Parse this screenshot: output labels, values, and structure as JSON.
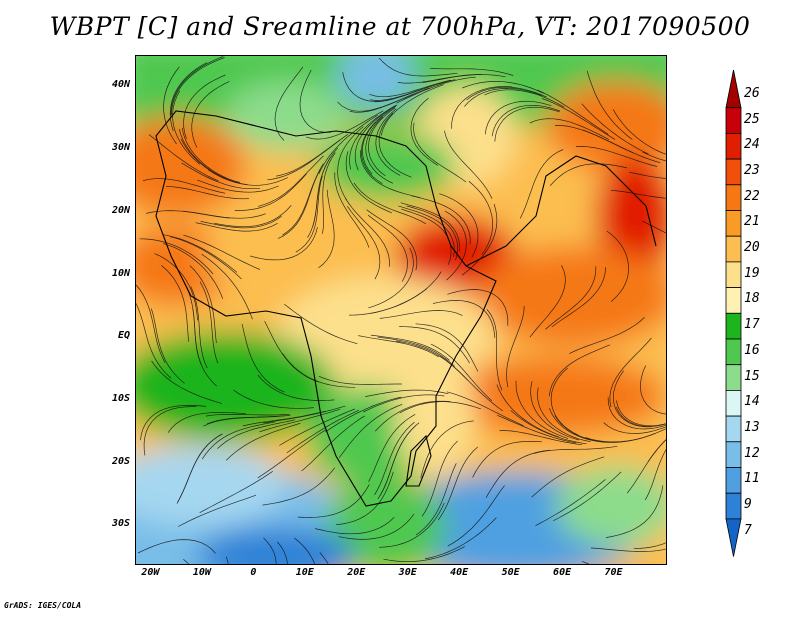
{
  "title": "WBPT [C] and Sreamline at 700hPa, VT: 2017090500",
  "credit": "GrADS: IGES/COLA",
  "lat_labels": [
    "40N",
    "30N",
    "20N",
    "10N",
    "EQ",
    "10S",
    "20S",
    "30S"
  ],
  "lat_values": [
    40,
    30,
    20,
    10,
    0,
    -10,
    -20,
    -30
  ],
  "lon_labels": [
    "20W",
    "10W",
    "0",
    "10E",
    "20E",
    "30E",
    "40E",
    "50E",
    "60E",
    "70E"
  ],
  "lon_values": [
    -20,
    -10,
    0,
    10,
    20,
    30,
    40,
    50,
    60,
    70
  ],
  "colorbar": {
    "labels": [
      "26",
      "25",
      "24",
      "23",
      "22",
      "21",
      "20",
      "19",
      "18",
      "17",
      "16",
      "15",
      "14",
      "13",
      "12",
      "11",
      "9",
      "7"
    ],
    "colors": [
      "#a50000",
      "#c8000a",
      "#e11e00",
      "#f0500a",
      "#f57814",
      "#fa9b28",
      "#fcbe50",
      "#fde08c",
      "#fff0b4",
      "#1eb41e",
      "#50c850",
      "#8cdc8c",
      "#dcf5f5",
      "#a5d7f0",
      "#78bee8",
      "#50a0e1",
      "#2d82d7",
      "#1464c8"
    ]
  }
}
